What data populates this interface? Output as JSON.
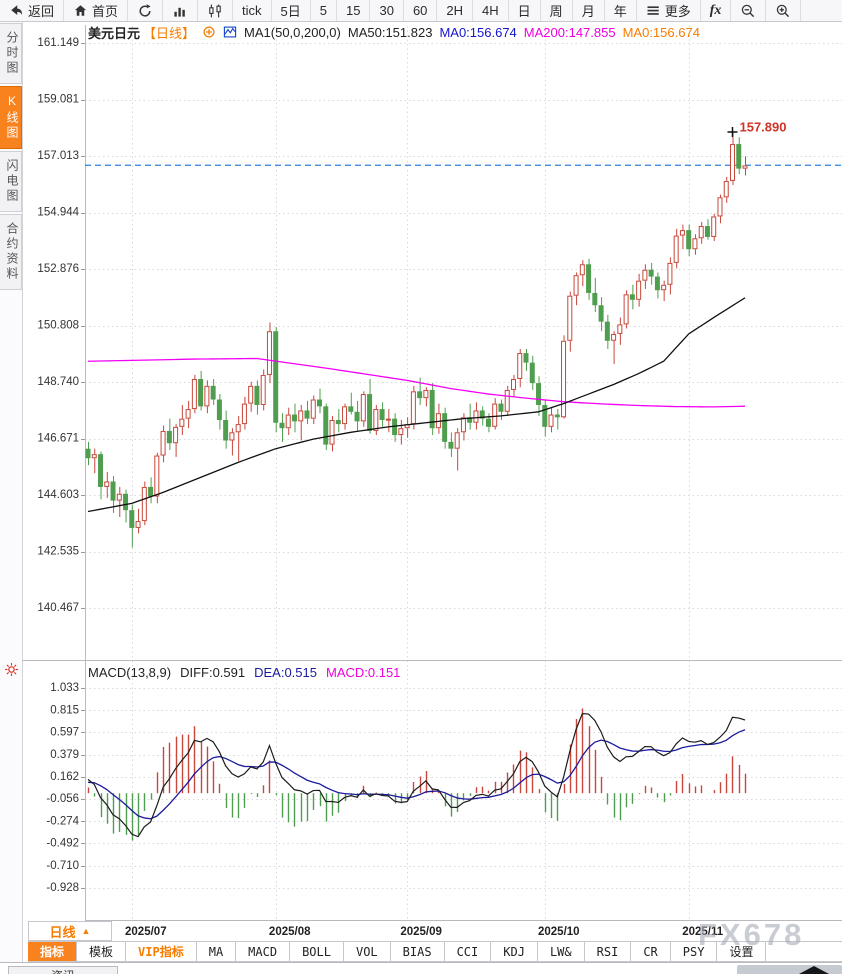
{
  "toolbar": {
    "items": [
      {
        "name": "back-button",
        "icon": "back-arrow",
        "label": "返回"
      },
      {
        "name": "home-button",
        "icon": "home",
        "label": "首页"
      },
      {
        "name": "refresh-button",
        "icon": "refresh",
        "label": ""
      },
      {
        "name": "chart-type-bar-button",
        "icon": "bar-chart",
        "label": ""
      },
      {
        "name": "chart-type-candle-button",
        "icon": "candlestick",
        "label": ""
      },
      {
        "name": "interval-tick-button",
        "icon": "",
        "label": "tick"
      },
      {
        "name": "interval-5d-button",
        "icon": "",
        "label": "5日"
      },
      {
        "name": "interval-5m-button",
        "icon": "",
        "label": "5"
      },
      {
        "name": "interval-15m-button",
        "icon": "",
        "label": "15"
      },
      {
        "name": "interval-30m-button",
        "icon": "",
        "label": "30"
      },
      {
        "name": "interval-60m-button",
        "icon": "",
        "label": "60"
      },
      {
        "name": "interval-2h-button",
        "icon": "",
        "label": "2H"
      },
      {
        "name": "interval-4h-button",
        "icon": "",
        "label": "4H"
      },
      {
        "name": "interval-day-button",
        "icon": "",
        "label": "日"
      },
      {
        "name": "interval-week-button",
        "icon": "",
        "label": "周"
      },
      {
        "name": "interval-month-button",
        "icon": "",
        "label": "月"
      },
      {
        "name": "interval-year-button",
        "icon": "",
        "label": "年"
      },
      {
        "name": "more-button",
        "icon": "menu",
        "label": "更多"
      },
      {
        "name": "formula-button",
        "icon": "fx-text",
        "label": ""
      },
      {
        "name": "zoom-out-button",
        "icon": "zoom-out",
        "label": ""
      },
      {
        "name": "zoom-in-button",
        "icon": "zoom-in",
        "label": ""
      }
    ]
  },
  "sidebar": {
    "tabs": [
      {
        "name": "time-share-chart",
        "label": "分时图",
        "active": false
      },
      {
        "name": "kline-chart",
        "label": "K线图",
        "active": true
      },
      {
        "name": "lightning-chart",
        "label": "闪电图",
        "active": false
      },
      {
        "name": "contract-info",
        "label": "合约资料",
        "active": false
      }
    ]
  },
  "chart_header": {
    "symbol": "美元日元",
    "period_tag": "【日线】",
    "ma_settings": "MA1(50,0,200,0)",
    "ma50_text": "MA50:151.823",
    "ma0_blue_text": "MA0:156.674",
    "ma200_text": "MA200:147.855",
    "ma0_orange_text": "MA0:156.674"
  },
  "macd_header": {
    "title": "MACD(13,8,9)",
    "diff_text": "DIFF:0.591",
    "dea_text": "DEA:0.515",
    "macd_text": "MACD:0.151"
  },
  "bottom": {
    "period_button_label": "日线",
    "period_button_arrow": "▲",
    "tabs": [
      {
        "name": "indicators",
        "label": "指标",
        "active": true
      },
      {
        "name": "templates",
        "label": "模板"
      },
      {
        "name": "vip-indicators",
        "label": "VIP指标",
        "vip": true
      },
      {
        "name": "ma",
        "label": "MA"
      },
      {
        "name": "macd",
        "label": "MACD"
      },
      {
        "name": "boll",
        "label": "BOLL"
      },
      {
        "name": "vol",
        "label": "VOL"
      },
      {
        "name": "bias",
        "label": "BIAS"
      },
      {
        "name": "cci",
        "label": "CCI"
      },
      {
        "name": "kdj",
        "label": "KDJ"
      },
      {
        "name": "lwr",
        "label": "LW&"
      },
      {
        "name": "rsi",
        "label": "RSI"
      },
      {
        "name": "cr",
        "label": "CR"
      },
      {
        "name": "psy",
        "label": "PSY"
      },
      {
        "name": "settings",
        "label": "设置"
      }
    ],
    "partial_tab_label": "资讯"
  },
  "watermark": "FX678",
  "colors": {
    "up": "#c8463a",
    "down": "#4f9e4f",
    "ma50": "#111111",
    "ma200": "#f400f4",
    "diff": "#1c1c1c",
    "dea": "#1b1b9e",
    "price_line": "#2b7fe0",
    "grid": "#d9d9de",
    "marker": "#cf3428",
    "accent_orange": "#f87c00",
    "legend_blue": "#1515cc",
    "legend_magenta": "#ee00dd"
  },
  "chart_data": {
    "type": "candlestick",
    "title": "美元日元 日线 (USD/JPY daily)",
    "y_axis_labels": [
      "161.149",
      "159.081",
      "157.013",
      "154.944",
      "152.876",
      "150.808",
      "148.740",
      "146.671",
      "144.603",
      "142.535",
      "140.467"
    ],
    "x_ticks": [
      {
        "label": "2025/07",
        "index": 7
      },
      {
        "label": "2025/08",
        "index": 30
      },
      {
        "label": "2025/09",
        "index": 51
      },
      {
        "label": "2025/10",
        "index": 73
      },
      {
        "label": "2025/11",
        "index": 96
      }
    ],
    "current_price_line": 156.674,
    "high_marker": {
      "index": 103,
      "price": 157.89,
      "label": "157.890"
    },
    "candles": [
      [
        146.3,
        146.55,
        145.7,
        145.95
      ],
      [
        145.95,
        146.3,
        145.4,
        146.1
      ],
      [
        146.1,
        146.2,
        144.45,
        144.9
      ],
      [
        144.9,
        145.45,
        144.5,
        145.1
      ],
      [
        145.1,
        145.3,
        143.95,
        144.4
      ],
      [
        144.4,
        144.9,
        143.8,
        144.65
      ],
      [
        144.65,
        144.8,
        143.6,
        144.05
      ],
      [
        144.05,
        144.25,
        142.68,
        143.4
      ],
      [
        143.4,
        144.1,
        143.2,
        143.65
      ],
      [
        143.65,
        145.1,
        143.5,
        144.9
      ],
      [
        144.9,
        145.25,
        144.3,
        144.55
      ],
      [
        144.55,
        146.15,
        144.3,
        146.05
      ],
      [
        146.05,
        147.15,
        145.8,
        146.95
      ],
      [
        146.95,
        147.4,
        146.25,
        146.5
      ],
      [
        146.5,
        147.2,
        146.0,
        147.1
      ],
      [
        147.1,
        147.9,
        146.8,
        147.4
      ],
      [
        147.4,
        148.05,
        147.05,
        147.75
      ],
      [
        147.75,
        149.0,
        147.6,
        148.85
      ],
      [
        148.85,
        149.15,
        147.7,
        147.85
      ],
      [
        147.85,
        148.8,
        147.6,
        148.6
      ],
      [
        148.6,
        148.85,
        147.9,
        148.1
      ],
      [
        148.1,
        148.3,
        147.0,
        147.35
      ],
      [
        147.35,
        147.7,
        146.3,
        146.6
      ],
      [
        146.6,
        147.05,
        146.05,
        146.9
      ],
      [
        146.9,
        147.5,
        145.85,
        147.2
      ],
      [
        147.2,
        148.2,
        147.0,
        147.95
      ],
      [
        147.95,
        148.75,
        147.65,
        148.6
      ],
      [
        148.6,
        148.8,
        147.55,
        147.9
      ],
      [
        147.9,
        149.2,
        147.7,
        149.0
      ],
      [
        149.0,
        150.92,
        148.7,
        150.6
      ],
      [
        150.6,
        150.75,
        146.9,
        147.25
      ],
      [
        147.25,
        147.6,
        146.55,
        147.05
      ],
      [
        147.05,
        147.8,
        146.8,
        147.55
      ],
      [
        147.55,
        147.95,
        146.9,
        147.3
      ],
      [
        147.3,
        147.9,
        146.6,
        147.7
      ],
      [
        147.7,
        148.05,
        147.2,
        147.4
      ],
      [
        147.4,
        148.25,
        147.2,
        148.1
      ],
      [
        148.1,
        148.5,
        147.6,
        147.85
      ],
      [
        147.85,
        147.95,
        146.25,
        146.45
      ],
      [
        146.45,
        147.5,
        146.2,
        147.35
      ],
      [
        147.35,
        147.75,
        146.9,
        147.2
      ],
      [
        147.2,
        147.95,
        147.0,
        147.85
      ],
      [
        147.85,
        148.35,
        147.55,
        147.65
      ],
      [
        147.65,
        148.05,
        146.95,
        147.3
      ],
      [
        147.3,
        148.4,
        147.1,
        148.3
      ],
      [
        148.3,
        148.85,
        146.85,
        146.95
      ],
      [
        146.95,
        147.9,
        146.8,
        147.75
      ],
      [
        147.75,
        148.0,
        147.1,
        147.35
      ],
      [
        147.35,
        147.75,
        146.9,
        147.4
      ],
      [
        147.4,
        147.6,
        146.55,
        146.8
      ],
      [
        146.8,
        147.35,
        146.45,
        147.05
      ],
      [
        147.05,
        147.45,
        146.7,
        147.2
      ],
      [
        147.2,
        148.6,
        147.0,
        148.4
      ],
      [
        148.4,
        148.9,
        147.9,
        148.15
      ],
      [
        148.15,
        148.55,
        147.85,
        148.45
      ],
      [
        148.45,
        148.7,
        146.8,
        147.05
      ],
      [
        147.05,
        147.95,
        146.85,
        147.6
      ],
      [
        147.6,
        147.8,
        146.3,
        146.55
      ],
      [
        146.55,
        146.9,
        146.0,
        146.3
      ],
      [
        146.3,
        147.05,
        145.5,
        146.9
      ],
      [
        146.9,
        147.6,
        146.6,
        147.45
      ],
      [
        147.45,
        147.95,
        147.0,
        147.25
      ],
      [
        147.25,
        148.0,
        147.0,
        147.7
      ],
      [
        147.7,
        147.85,
        147.15,
        147.4
      ],
      [
        147.4,
        147.6,
        146.9,
        147.1
      ],
      [
        147.1,
        148.15,
        147.0,
        147.95
      ],
      [
        147.95,
        148.1,
        147.35,
        147.65
      ],
      [
        147.65,
        148.6,
        147.5,
        148.45
      ],
      [
        148.45,
        149.0,
        148.2,
        148.85
      ],
      [
        148.85,
        149.95,
        148.55,
        149.8
      ],
      [
        149.8,
        149.95,
        149.15,
        149.45
      ],
      [
        149.45,
        149.7,
        148.45,
        148.7
      ],
      [
        148.7,
        148.95,
        147.5,
        147.9
      ],
      [
        147.9,
        148.1,
        146.75,
        147.1
      ],
      [
        147.1,
        147.8,
        146.9,
        147.55
      ],
      [
        147.55,
        147.75,
        147.0,
        147.45
      ],
      [
        147.45,
        150.45,
        147.4,
        150.25
      ],
      [
        150.25,
        152.05,
        149.85,
        151.9
      ],
      [
        151.9,
        152.75,
        151.55,
        152.65
      ],
      [
        152.65,
        153.2,
        152.25,
        153.05
      ],
      [
        153.05,
        153.25,
        151.75,
        152.0
      ],
      [
        152.0,
        152.55,
        151.3,
        151.55
      ],
      [
        151.55,
        151.85,
        150.6,
        150.95
      ],
      [
        150.95,
        151.2,
        149.95,
        150.25
      ],
      [
        150.25,
        150.6,
        149.4,
        150.5
      ],
      [
        150.5,
        151.1,
        150.1,
        150.85
      ],
      [
        150.85,
        152.1,
        150.7,
        151.95
      ],
      [
        151.95,
        152.3,
        151.4,
        151.75
      ],
      [
        151.75,
        152.7,
        151.5,
        152.45
      ],
      [
        152.45,
        153.05,
        152.15,
        152.85
      ],
      [
        152.85,
        153.1,
        152.3,
        152.6
      ],
      [
        152.6,
        152.75,
        151.8,
        152.1
      ],
      [
        152.1,
        152.45,
        151.7,
        152.3
      ],
      [
        152.3,
        153.3,
        151.95,
        153.1
      ],
      [
        153.1,
        154.35,
        152.9,
        154.1
      ],
      [
        154.1,
        154.5,
        153.6,
        154.3
      ],
      [
        154.3,
        154.5,
        153.35,
        153.6
      ],
      [
        153.6,
        154.15,
        153.4,
        154.0
      ],
      [
        154.0,
        154.6,
        153.8,
        154.45
      ],
      [
        154.45,
        154.7,
        153.95,
        154.05
      ],
      [
        154.05,
        154.9,
        153.9,
        154.8
      ],
      [
        154.8,
        155.6,
        154.55,
        155.5
      ],
      [
        155.5,
        156.25,
        155.3,
        156.1
      ],
      [
        156.1,
        157.89,
        155.95,
        157.45
      ],
      [
        157.45,
        157.7,
        156.35,
        156.55
      ],
      [
        156.55,
        157.0,
        156.3,
        156.67
      ]
    ],
    "ma50_points": [
      [
        0,
        144.0
      ],
      [
        7,
        144.3
      ],
      [
        12,
        144.7
      ],
      [
        18,
        145.25
      ],
      [
        24,
        145.8
      ],
      [
        30,
        146.3
      ],
      [
        36,
        146.65
      ],
      [
        42,
        146.9
      ],
      [
        48,
        147.1
      ],
      [
        54,
        147.25
      ],
      [
        60,
        147.4
      ],
      [
        66,
        147.5
      ],
      [
        72,
        147.65
      ],
      [
        76,
        147.95
      ],
      [
        80,
        148.3
      ],
      [
        84,
        148.65
      ],
      [
        88,
        149.05
      ],
      [
        92,
        149.5
      ],
      [
        96,
        150.5
      ],
      [
        100,
        151.1
      ],
      [
        105,
        151.823
      ]
    ],
    "ma200_points": [
      [
        0,
        149.5
      ],
      [
        17,
        149.58
      ],
      [
        27,
        149.6
      ],
      [
        38,
        149.25
      ],
      [
        51,
        148.8
      ],
      [
        58,
        148.5
      ],
      [
        64,
        148.3
      ],
      [
        70,
        148.15
      ],
      [
        76,
        148.02
      ],
      [
        82,
        147.94
      ],
      [
        88,
        147.88
      ],
      [
        94,
        147.84
      ],
      [
        100,
        147.83
      ],
      [
        105,
        147.855
      ]
    ],
    "macd_panel": {
      "params": "(13,8,9)",
      "y_axis_labels": [
        "1.033",
        "0.815",
        "0.597",
        "0.379",
        "0.162",
        "-0.056",
        "-0.274",
        "-0.492",
        "-0.710",
        "-0.928"
      ],
      "diff_last": 0.591,
      "dea_last": 0.515,
      "macd_last": 0.151,
      "seed": {
        "ema_fast": 146.62,
        "ema_slow": 146.4,
        "dea": 0.1
      }
    }
  }
}
